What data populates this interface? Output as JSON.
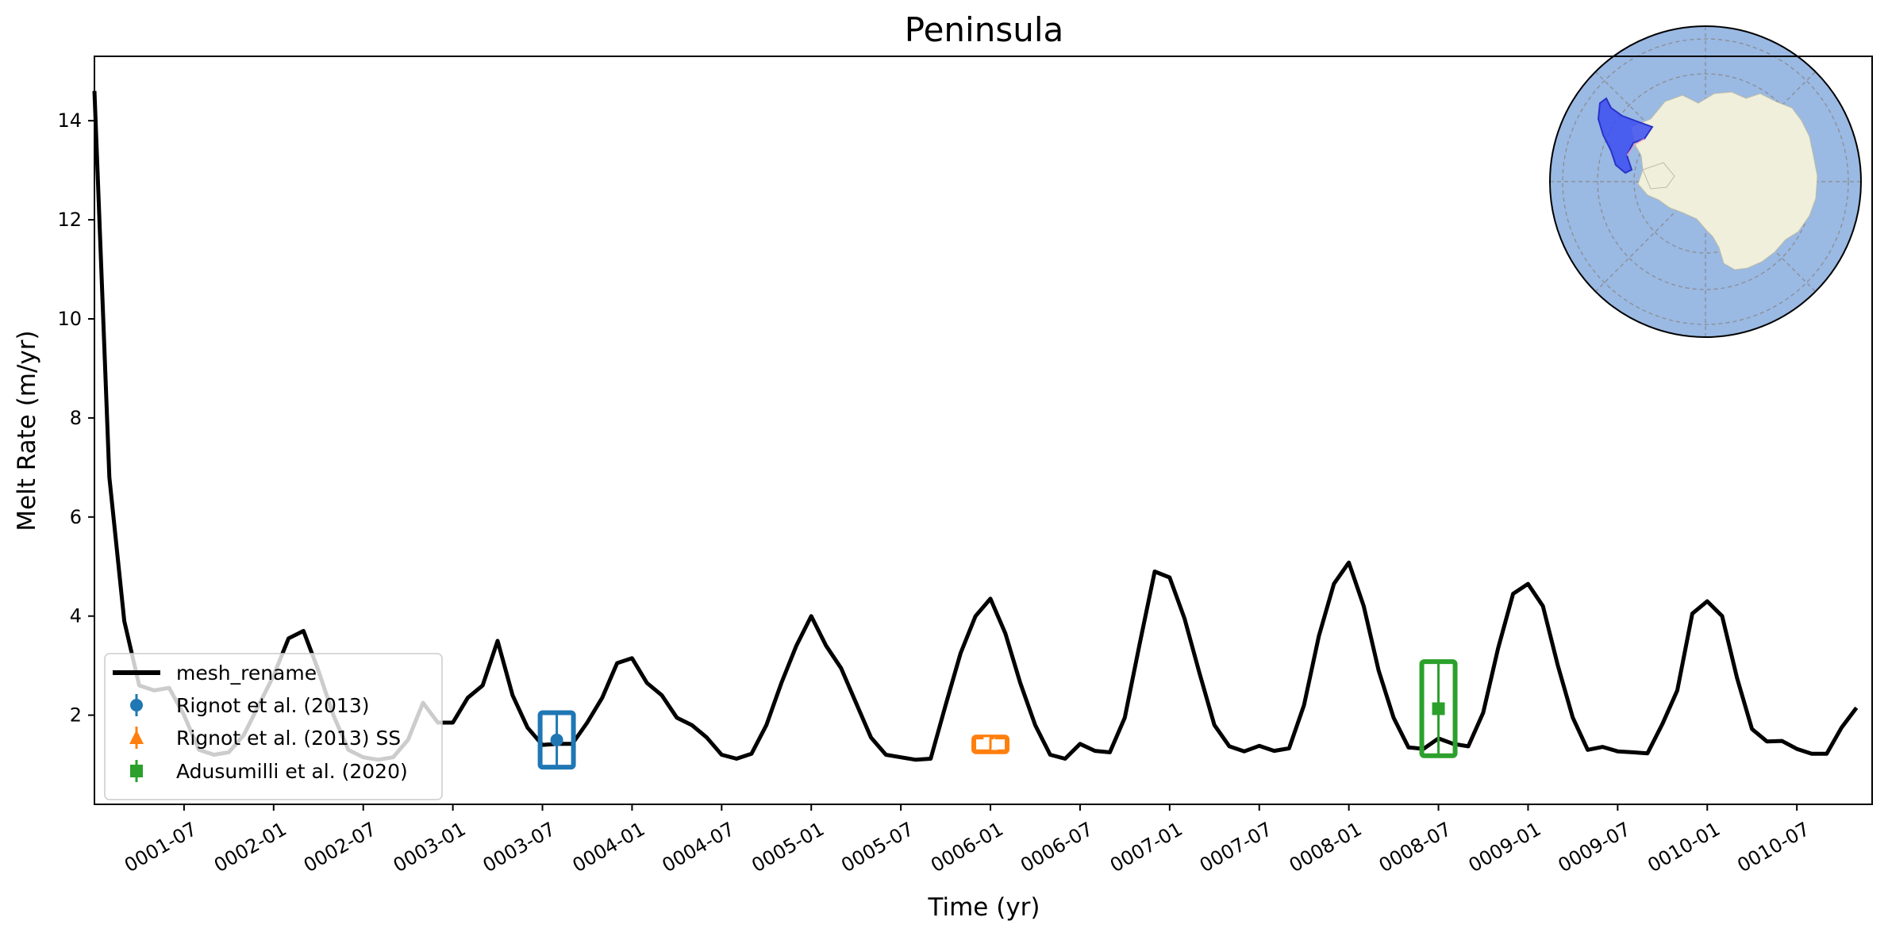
{
  "chart_data": {
    "type": "line",
    "title": "Peninsula",
    "xlabel": "Time (yr)",
    "ylabel": "Melt Rate (m/yr)",
    "xlim": [
      0.0,
      9.92
    ],
    "ylim": [
      0.2,
      15.3
    ],
    "yticks": [
      2,
      4,
      6,
      8,
      10,
      12,
      14
    ],
    "xticks": [
      {
        "t": 0.5,
        "label": "0001-07"
      },
      {
        "t": 1.0,
        "label": "0002-01"
      },
      {
        "t": 1.5,
        "label": "0002-07"
      },
      {
        "t": 2.0,
        "label": "0003-01"
      },
      {
        "t": 2.5,
        "label": "0003-07"
      },
      {
        "t": 3.0,
        "label": "0004-01"
      },
      {
        "t": 3.5,
        "label": "0004-07"
      },
      {
        "t": 4.0,
        "label": "0005-01"
      },
      {
        "t": 4.5,
        "label": "0005-07"
      },
      {
        "t": 5.0,
        "label": "0006-01"
      },
      {
        "t": 5.5,
        "label": "0006-07"
      },
      {
        "t": 6.0,
        "label": "0007-01"
      },
      {
        "t": 6.5,
        "label": "0007-07"
      },
      {
        "t": 7.0,
        "label": "0008-01"
      },
      {
        "t": 7.5,
        "label": "0008-07"
      },
      {
        "t": 8.0,
        "label": "0009-01"
      },
      {
        "t": 8.5,
        "label": "0009-07"
      },
      {
        "t": 9.0,
        "label": "0010-01"
      },
      {
        "t": 9.5,
        "label": "0010-07"
      }
    ],
    "series": [
      {
        "name": "mesh_rename",
        "color": "#000000",
        "x0": 0.0,
        "dx": 0.08333,
        "values": [
          14.6,
          6.8,
          3.9,
          2.6,
          2.5,
          2.55,
          2.0,
          1.3,
          1.2,
          1.25,
          1.6,
          2.2,
          2.8,
          3.55,
          3.7,
          2.9,
          2.0,
          1.3,
          1.15,
          1.1,
          1.15,
          1.5,
          2.25,
          1.85,
          1.85,
          2.35,
          2.6,
          3.5,
          2.4,
          1.75,
          1.4,
          1.42,
          1.42,
          1.85,
          2.35,
          3.05,
          3.15,
          2.65,
          2.4,
          1.95,
          1.8,
          1.55,
          1.2,
          1.12,
          1.22,
          1.8,
          2.65,
          3.4,
          4.0,
          3.4,
          2.95,
          2.25,
          1.55,
          1.2,
          1.15,
          1.1,
          1.12,
          2.2,
          3.25,
          4.0,
          4.35,
          3.65,
          2.65,
          1.8,
          1.2,
          1.12,
          1.42,
          1.28,
          1.25,
          1.95,
          3.45,
          4.9,
          4.78,
          3.95,
          2.85,
          1.8,
          1.37,
          1.27,
          1.38,
          1.28,
          1.33,
          2.2,
          3.6,
          4.65,
          5.08,
          4.2,
          2.9,
          1.95,
          1.35,
          1.32,
          1.53,
          1.42,
          1.37,
          2.05,
          3.35,
          4.45,
          4.65,
          4.2,
          3.0,
          1.95,
          1.3,
          1.36,
          1.27,
          1.25,
          1.23,
          1.82,
          2.5,
          4.05,
          4.3,
          4.0,
          2.75,
          1.72,
          1.47,
          1.48,
          1.32,
          1.22,
          1.22,
          1.75,
          2.15
        ]
      }
    ],
    "observations": [
      {
        "name": "Rignot et al. (2013)",
        "color": "#1f77b4",
        "marker": "circle",
        "t": 2.58,
        "value": 1.5,
        "err": 0.55
      },
      {
        "name": "Rignot et al. (2013) SS",
        "color": "#ff7f0e",
        "marker": "triangle",
        "t": 5.0,
        "value": 1.41,
        "err": 0.15
      },
      {
        "name": "Adusumilli et al. (2020)",
        "color": "#2ca02c",
        "marker": "square",
        "t": 7.5,
        "value": 2.13,
        "err": 0.95
      }
    ],
    "legend": {
      "location": "lower-left",
      "entries": [
        "mesh_rename",
        "Rignot et al. (2013)",
        "Rignot et al. (2013) SS",
        "Adusumilli et al. (2020)"
      ]
    },
    "inset_map": {
      "description": "south polar stereographic map of Antarctica with Peninsula region highlighted",
      "ocean_color": "#9ab9e3",
      "land_color": "#efefdb",
      "highlight_color": "#3b4cf0",
      "location": "top-right"
    }
  }
}
